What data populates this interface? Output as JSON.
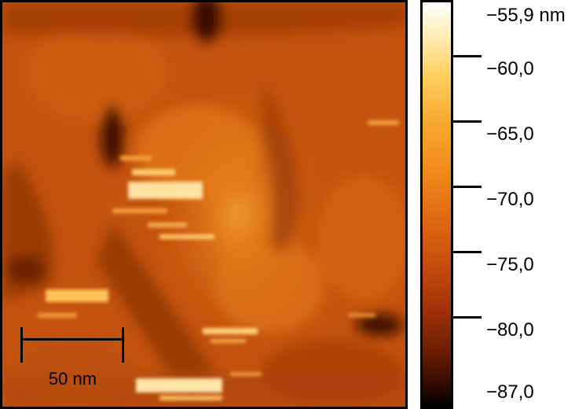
{
  "scale_bar": {
    "label": "50 nm"
  },
  "colorbar": {
    "labels": [
      "−55,9 nm",
      "−60,0",
      "−65,0",
      "−70,0",
      "−75,0",
      "−80,0",
      "−87,0"
    ],
    "colors": [
      "#000000",
      "#2e0a01",
      "#6d1e04",
      "#a03208",
      "#c24a0c",
      "#de6510",
      "#f08a1c",
      "#f7a72d",
      "#ffd060",
      "#ffeeb8",
      "#ffffff"
    ]
  },
  "image": {
    "description_colormap": "afmhot"
  }
}
